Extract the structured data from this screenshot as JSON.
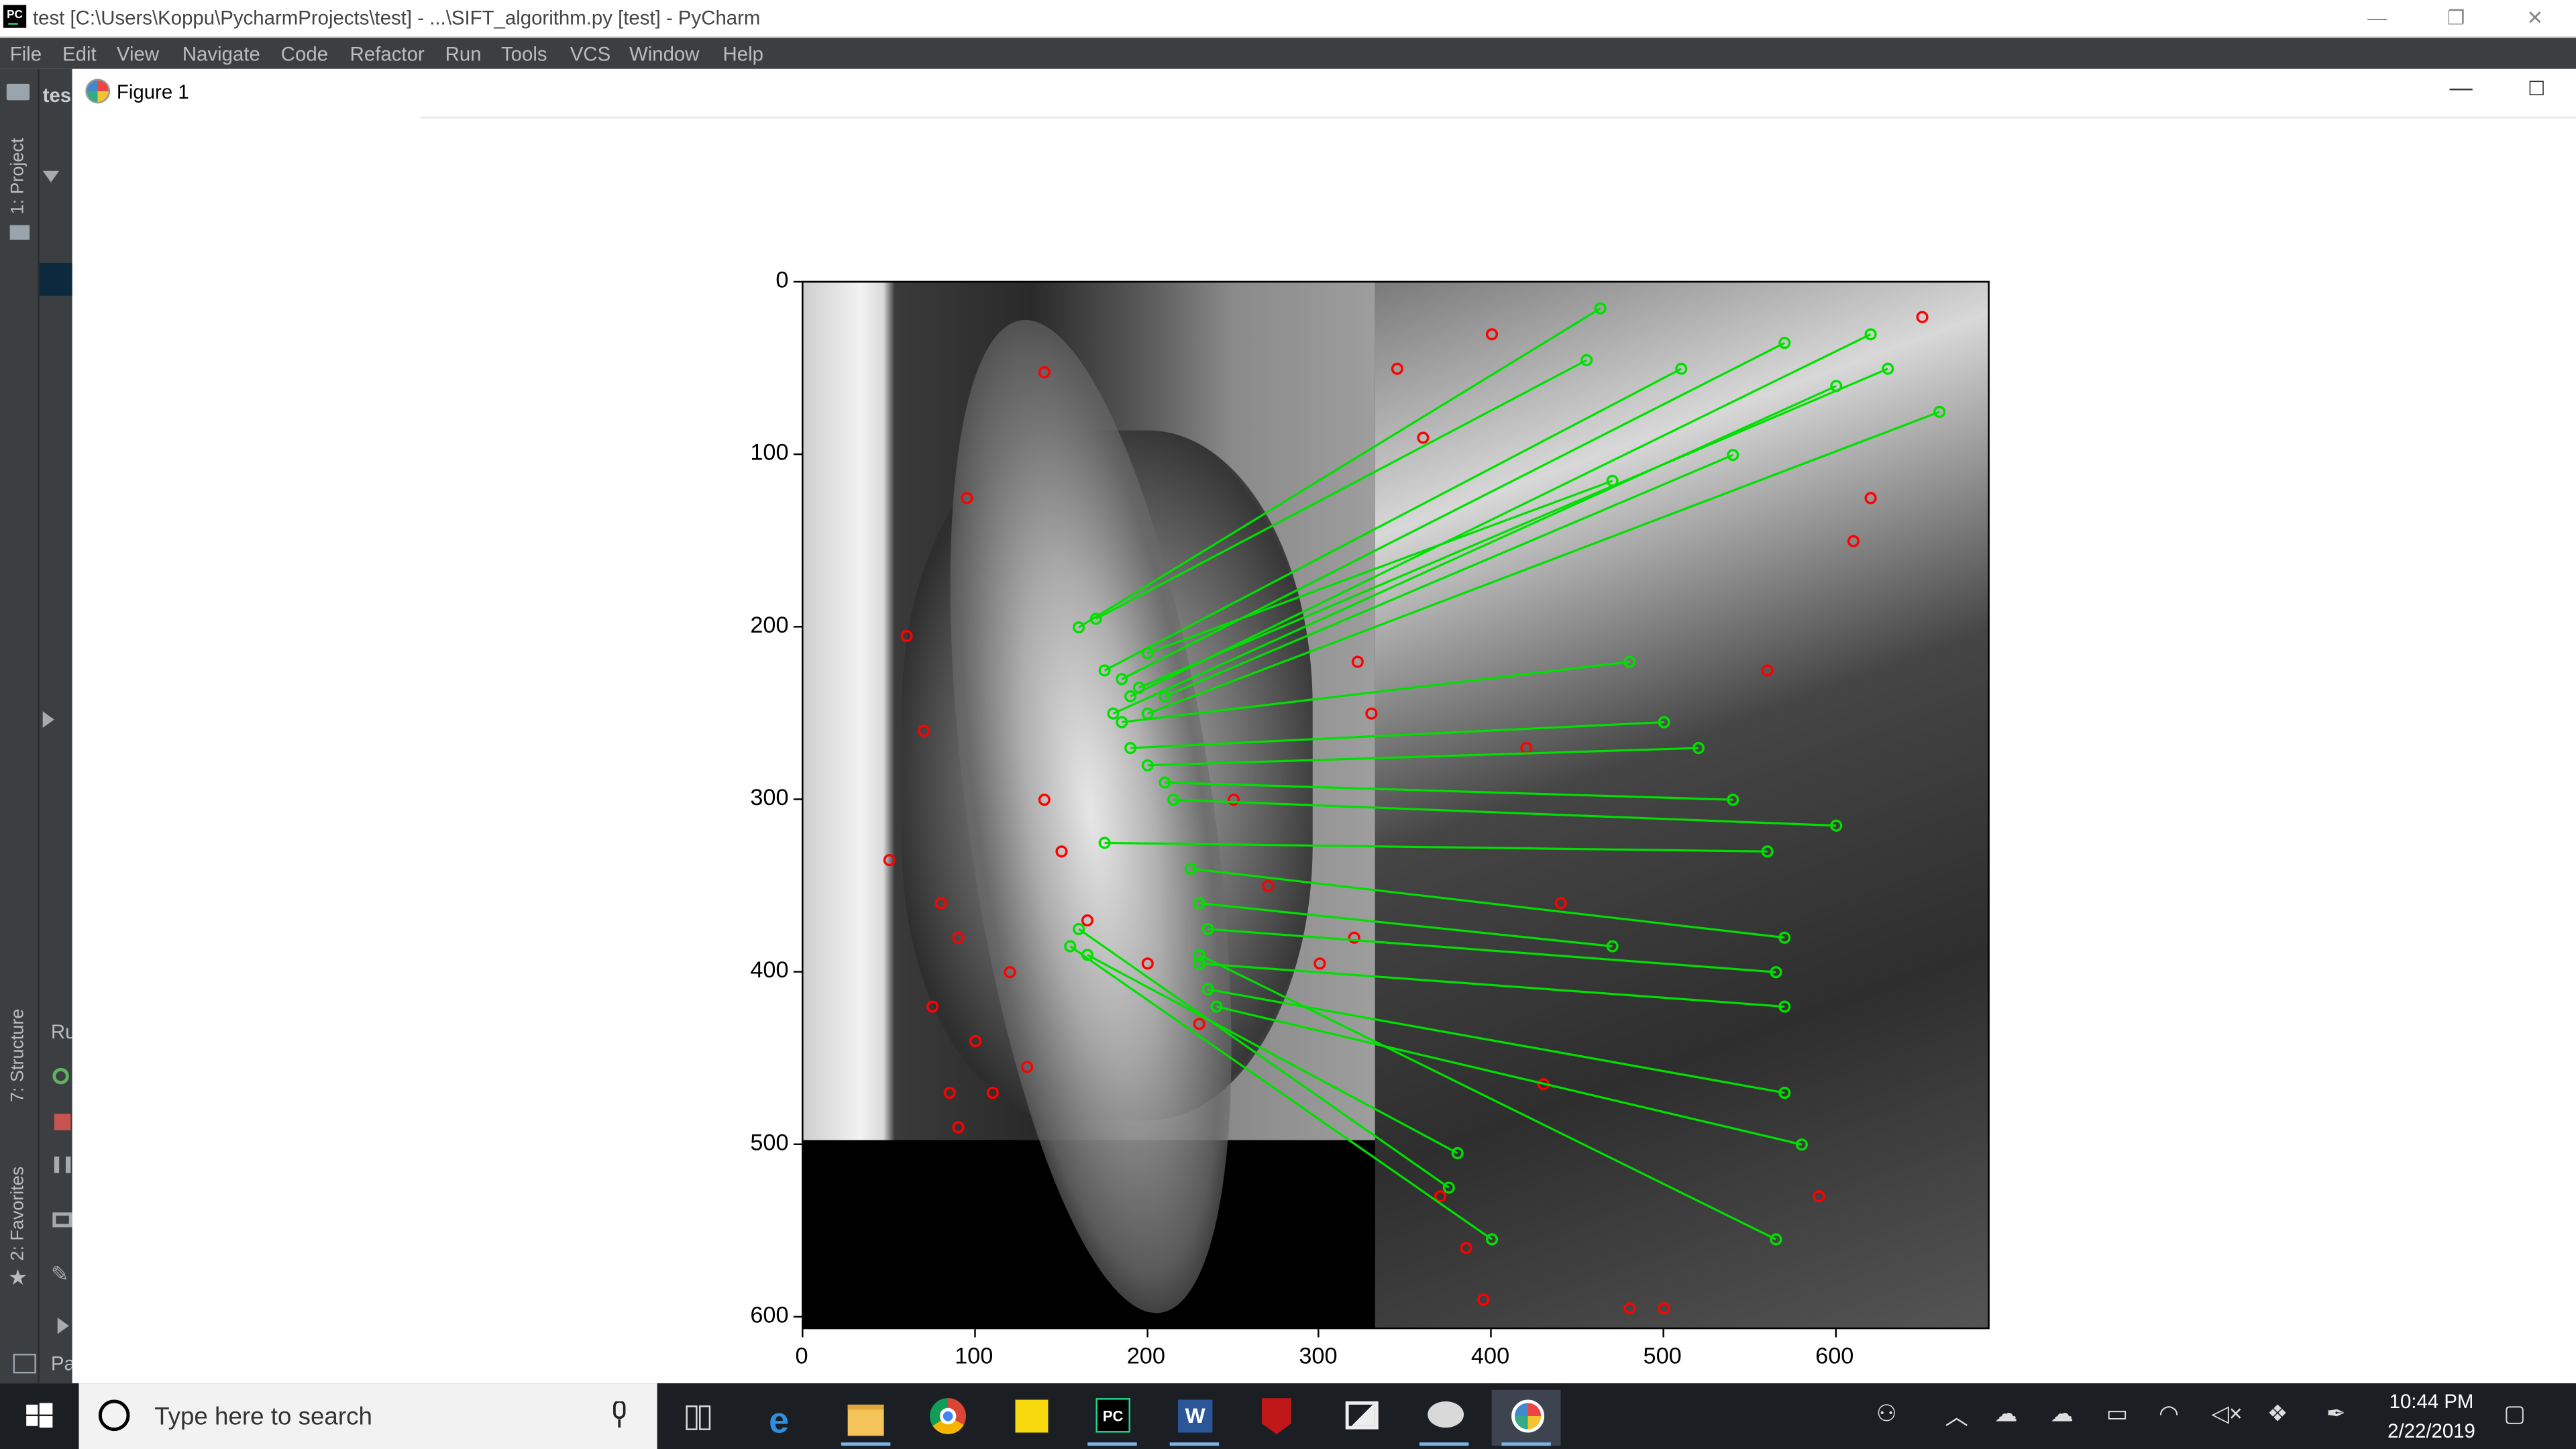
{
  "app": {
    "window_title": "test [C:\\Users\\Koppu\\PycharmProjects\\test] - ...\\SIFT_algorithm.py [test] - PyCharm",
    "logo_text": "PC",
    "menu": [
      "File",
      "Edit",
      "View",
      "Navigate",
      "Code",
      "Refactor",
      "Run",
      "Tools",
      "VCS",
      "Window",
      "Help"
    ],
    "side_tabs": [
      "1: Project",
      "7: Structure",
      "2: Favorites"
    ],
    "partial_labels": {
      "project_crumb": "tes",
      "run_panel": "Ru",
      "bottom_panel": "Pa"
    }
  },
  "figure": {
    "title": "Figure 1",
    "icon": "matplotlib-icon",
    "controls": {
      "minimize": "—",
      "maximize": "☐"
    }
  },
  "chart_data": {
    "type": "scatter",
    "title": "",
    "xlabel": "",
    "ylabel": "",
    "xlim": [
      0,
      690
    ],
    "ylim": [
      608,
      0
    ],
    "x_ticks": [
      "0",
      "100",
      "200",
      "300",
      "400",
      "500",
      "600"
    ],
    "y_ticks": [
      "0",
      "100",
      "200",
      "300",
      "400",
      "500",
      "600"
    ],
    "image": "Two grayscale images side by side (left image 333 px wide, 500 px tall; right image 345 px wide); SIFT keypoints (red circles) and matched keypoint pairs (green lines)",
    "series": [
      {
        "kind": "keypoints",
        "color": "#ff0000"
      },
      {
        "kind": "matches",
        "color": "#00e000"
      }
    ],
    "matches_sample": [
      [
        [
          160,
          200
        ],
        [
          463,
          15
        ]
      ],
      [
        [
          170,
          195
        ],
        [
          455,
          45
        ]
      ],
      [
        [
          175,
          225
        ],
        [
          510,
          50
        ]
      ],
      [
        [
          185,
          230
        ],
        [
          570,
          35
        ]
      ],
      [
        [
          190,
          240
        ],
        [
          620,
          30
        ]
      ],
      [
        [
          195,
          235
        ],
        [
          630,
          50
        ]
      ],
      [
        [
          180,
          250
        ],
        [
          600,
          60
        ]
      ],
      [
        [
          200,
          215
        ],
        [
          470,
          115
        ]
      ],
      [
        [
          210,
          240
        ],
        [
          540,
          100
        ]
      ],
      [
        [
          200,
          250
        ],
        [
          660,
          75
        ]
      ],
      [
        [
          185,
          255
        ],
        [
          480,
          220
        ]
      ],
      [
        [
          190,
          270
        ],
        [
          500,
          255
        ]
      ],
      [
        [
          200,
          280
        ],
        [
          520,
          270
        ]
      ],
      [
        [
          210,
          290
        ],
        [
          540,
          300
        ]
      ],
      [
        [
          215,
          300
        ],
        [
          600,
          315
        ]
      ],
      [
        [
          175,
          325
        ],
        [
          560,
          330
        ]
      ],
      [
        [
          225,
          340
        ],
        [
          570,
          380
        ]
      ],
      [
        [
          230,
          360
        ],
        [
          470,
          385
        ]
      ],
      [
        [
          235,
          375
        ],
        [
          565,
          400
        ]
      ],
      [
        [
          230,
          395
        ],
        [
          570,
          420
        ]
      ],
      [
        [
          235,
          410
        ],
        [
          570,
          470
        ]
      ],
      [
        [
          240,
          420
        ],
        [
          580,
          500
        ]
      ],
      [
        [
          160,
          375
        ],
        [
          375,
          525
        ]
      ],
      [
        [
          155,
          385
        ],
        [
          400,
          555
        ]
      ],
      [
        [
          165,
          390
        ],
        [
          380,
          505
        ]
      ],
      [
        [
          230,
          390
        ],
        [
          565,
          555
        ]
      ]
    ],
    "keypoints_sample": [
      [
        140,
        52
      ],
      [
        95,
        125
      ],
      [
        60,
        205
      ],
      [
        70,
        260
      ],
      [
        50,
        335
      ],
      [
        80,
        360
      ],
      [
        90,
        380
      ],
      [
        75,
        420
      ],
      [
        85,
        470
      ],
      [
        90,
        490
      ],
      [
        100,
        440
      ],
      [
        110,
        470
      ],
      [
        120,
        400
      ],
      [
        130,
        455
      ],
      [
        140,
        300
      ],
      [
        150,
        330
      ],
      [
        165,
        370
      ],
      [
        200,
        395
      ],
      [
        230,
        430
      ],
      [
        250,
        300
      ],
      [
        270,
        350
      ],
      [
        300,
        395
      ],
      [
        320,
        380
      ],
      [
        330,
        250
      ],
      [
        322,
        220
      ],
      [
        345,
        50
      ],
      [
        360,
        90
      ],
      [
        400,
        30
      ],
      [
        420,
        270
      ],
      [
        440,
        360
      ],
      [
        430,
        465
      ],
      [
        480,
        595
      ],
      [
        500,
        595
      ],
      [
        610,
        150
      ],
      [
        620,
        125
      ],
      [
        650,
        20
      ],
      [
        560,
        225
      ],
      [
        590,
        530
      ],
      [
        370,
        530
      ],
      [
        385,
        560
      ],
      [
        395,
        590
      ]
    ]
  },
  "taskbar": {
    "search_placeholder": "Type here to search",
    "apps": [
      "task-view",
      "edge",
      "file-explorer",
      "chrome",
      "sticky-notes",
      "pycharm",
      "word",
      "mcafee",
      "photos",
      "snipping",
      "matplotlib-figure"
    ],
    "clock_time": "10:44 PM",
    "clock_date": "2/22/2019"
  }
}
